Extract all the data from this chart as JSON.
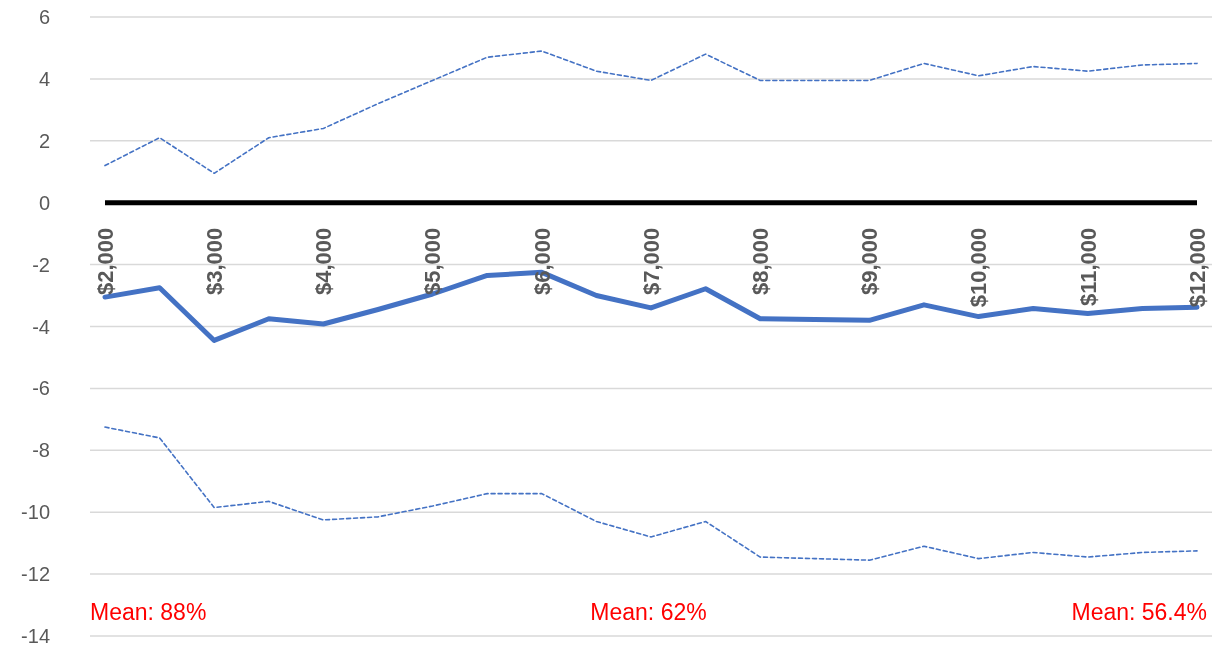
{
  "chart_data": {
    "type": "line",
    "x": [
      2000,
      2500,
      3000,
      3500,
      4000,
      4500,
      5000,
      5500,
      6000,
      6500,
      7000,
      7500,
      8000,
      8500,
      9000,
      9500,
      10000,
      10500,
      11000,
      11500,
      12000
    ],
    "series": [
      {
        "color": "#4472c4",
        "line_style": "solid",
        "values": [
          -3.05,
          -2.75,
          -4.45,
          -3.75,
          -3.92,
          -3.45,
          -2.95,
          -2.35,
          -2.25,
          -3.0,
          -3.4,
          -2.78,
          -3.75,
          -3.77,
          -3.8,
          -3.3,
          -3.68,
          -3.42,
          -3.58,
          -3.42,
          -3.38
        ]
      },
      {
        "color": "#4472c4",
        "line_style": "dashed",
        "values": [
          1.2,
          2.1,
          0.95,
          2.1,
          2.4,
          3.2,
          3.95,
          4.7,
          4.9,
          4.25,
          3.95,
          4.8,
          3.95,
          3.95,
          3.95,
          4.5,
          4.1,
          4.4,
          4.25,
          4.45,
          4.5
        ]
      },
      {
        "color": "#4472c4",
        "line_style": "dashed",
        "values": [
          -7.25,
          -7.6,
          -9.85,
          -9.65,
          -10.25,
          -10.15,
          -9.8,
          -9.4,
          -9.4,
          -10.3,
          -10.8,
          -10.3,
          -11.45,
          -11.5,
          -11.55,
          -11.1,
          -11.5,
          -11.3,
          -11.45,
          -11.3,
          -11.25
        ]
      }
    ],
    "xlim": [
      2000,
      12000
    ],
    "xticks": [
      {
        "value": 2000,
        "label": "$2,000"
      },
      {
        "value": 3000,
        "label": "$3,000"
      },
      {
        "value": 4000,
        "label": "$4,000"
      },
      {
        "value": 5000,
        "label": "$5,000"
      },
      {
        "value": 6000,
        "label": "$6,000"
      },
      {
        "value": 7000,
        "label": "$7,000"
      },
      {
        "value": 8000,
        "label": "$8,000"
      },
      {
        "value": 9000,
        "label": "$9,000"
      },
      {
        "value": 10000,
        "label": "$10,000"
      },
      {
        "value": 11000,
        "label": "$11,000"
      },
      {
        "value": 12000,
        "label": "$12,000"
      }
    ],
    "ylim": [
      -14,
      6
    ],
    "yticks": [
      -14,
      -12,
      -10,
      -8,
      -6,
      -4,
      -2,
      0,
      2,
      4,
      6
    ],
    "grid": "y",
    "marker": "none",
    "annotations": [
      "Mean: 88%",
      "Mean: 62%",
      "Mean: 56.4%"
    ]
  }
}
